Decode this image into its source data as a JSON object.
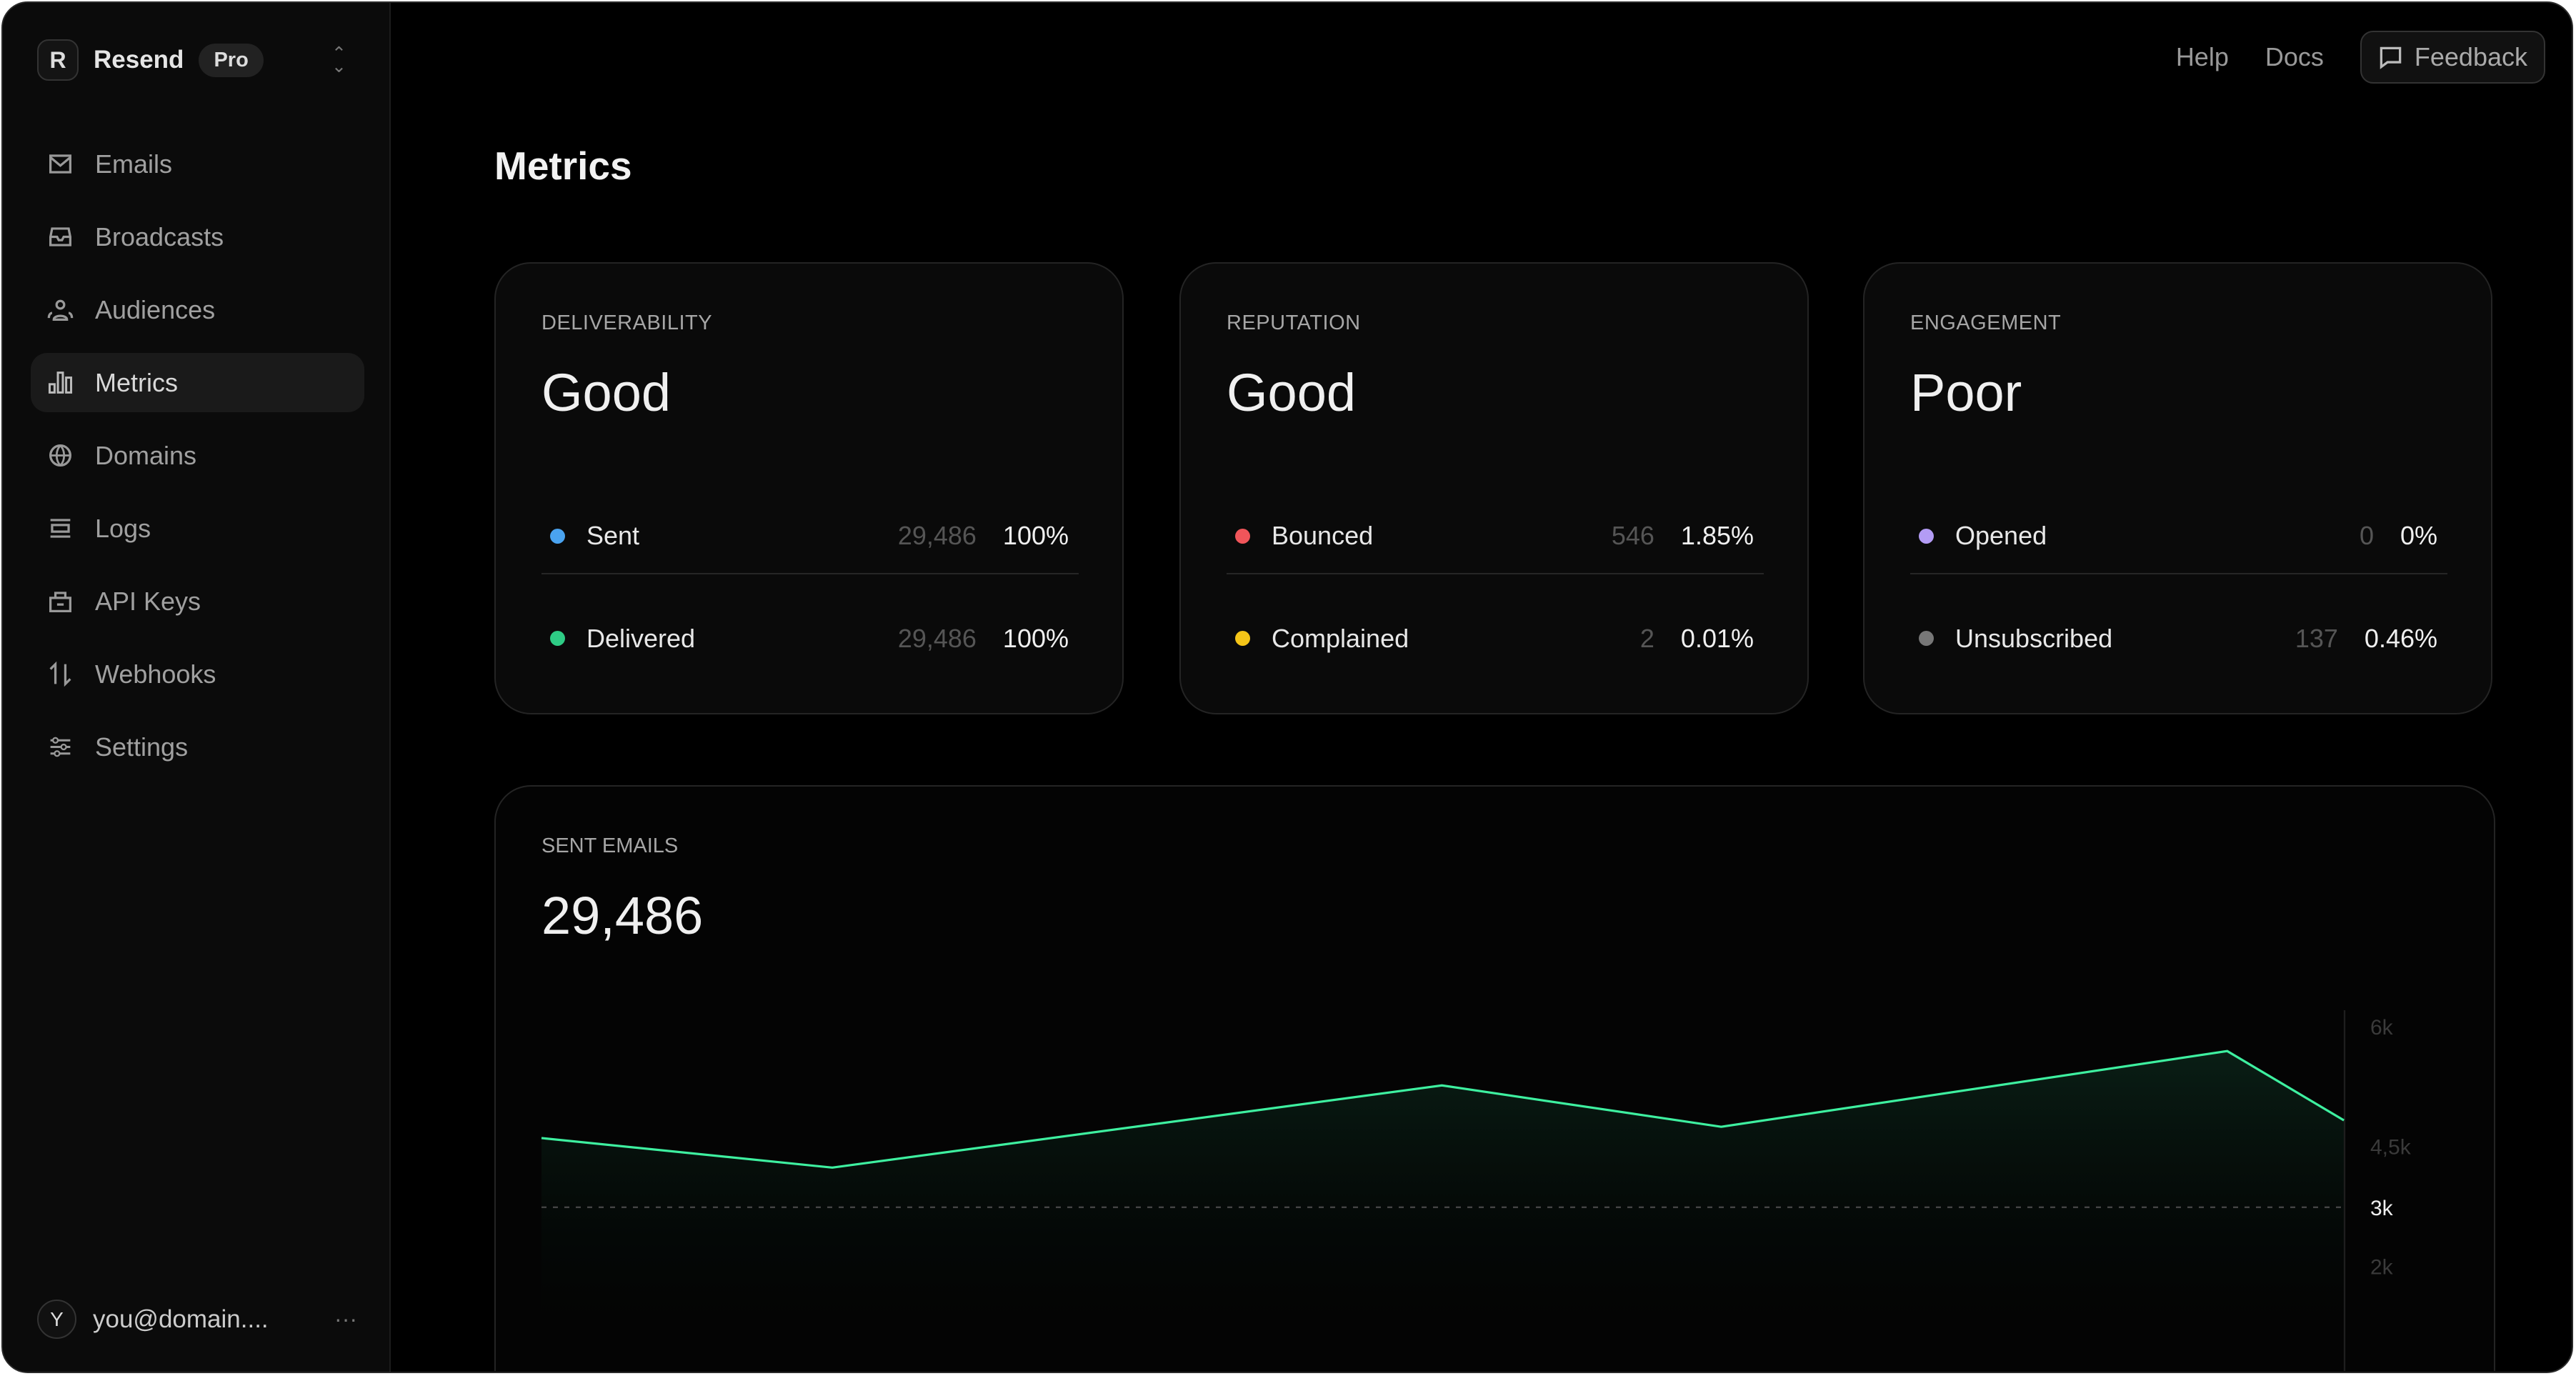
{
  "sidebar": {
    "brand": "Resend",
    "logo_letter": "R",
    "plan_badge": "Pro",
    "items": [
      {
        "label": "Emails",
        "icon": "mail-icon"
      },
      {
        "label": "Broadcasts",
        "icon": "inbox-icon"
      },
      {
        "label": "Audiences",
        "icon": "users-icon"
      },
      {
        "label": "Metrics",
        "icon": "bar-chart-icon",
        "active": true
      },
      {
        "label": "Domains",
        "icon": "globe-icon"
      },
      {
        "label": "Logs",
        "icon": "logs-icon"
      },
      {
        "label": "API Keys",
        "icon": "lock-icon"
      },
      {
        "label": "Webhooks",
        "icon": "arrows-icon"
      },
      {
        "label": "Settings",
        "icon": "sliders-icon"
      }
    ],
    "user": {
      "initial": "Y",
      "email": "you@domain....",
      "more": "···"
    }
  },
  "topbar": {
    "help": "Help",
    "docs": "Docs",
    "feedback": "Feedback"
  },
  "page_title": "Metrics",
  "cards": [
    {
      "label": "DELIVERABILITY",
      "status": "Good",
      "rows": [
        {
          "label": "Sent",
          "count": "29,486",
          "pct": "100%",
          "color": "#4aa3f0"
        },
        {
          "label": "Delivered",
          "count": "29,486",
          "pct": "100%",
          "color": "#2ecc85"
        }
      ]
    },
    {
      "label": "REPUTATION",
      "status": "Good",
      "rows": [
        {
          "label": "Bounced",
          "count": "546",
          "pct": "1.85%",
          "color": "#f0555a"
        },
        {
          "label": "Complained",
          "count": "2",
          "pct": "0.01%",
          "color": "#f5c518"
        }
      ]
    },
    {
      "label": "ENGAGEMENT",
      "status": "Poor",
      "rows": [
        {
          "label": "Opened",
          "count": "0",
          "pct": "0%",
          "color": "#b39cf5"
        },
        {
          "label": "Unsubscribed",
          "count": "137",
          "pct": "0.46%",
          "color": "#777777"
        }
      ]
    }
  ],
  "sent_emails": {
    "label": "SENT EMAILS",
    "total": "29,486"
  },
  "chart_data": {
    "type": "area",
    "values": [
      4170,
      3670,
      5060,
      4360,
      5640,
      4470
    ],
    "y_ticks": [
      "6k",
      "4,5k",
      "3k",
      "2k"
    ],
    "highlighted_tick": "3k",
    "reference_line": 3000,
    "line_color": "#3ef0a0",
    "grid": false
  }
}
